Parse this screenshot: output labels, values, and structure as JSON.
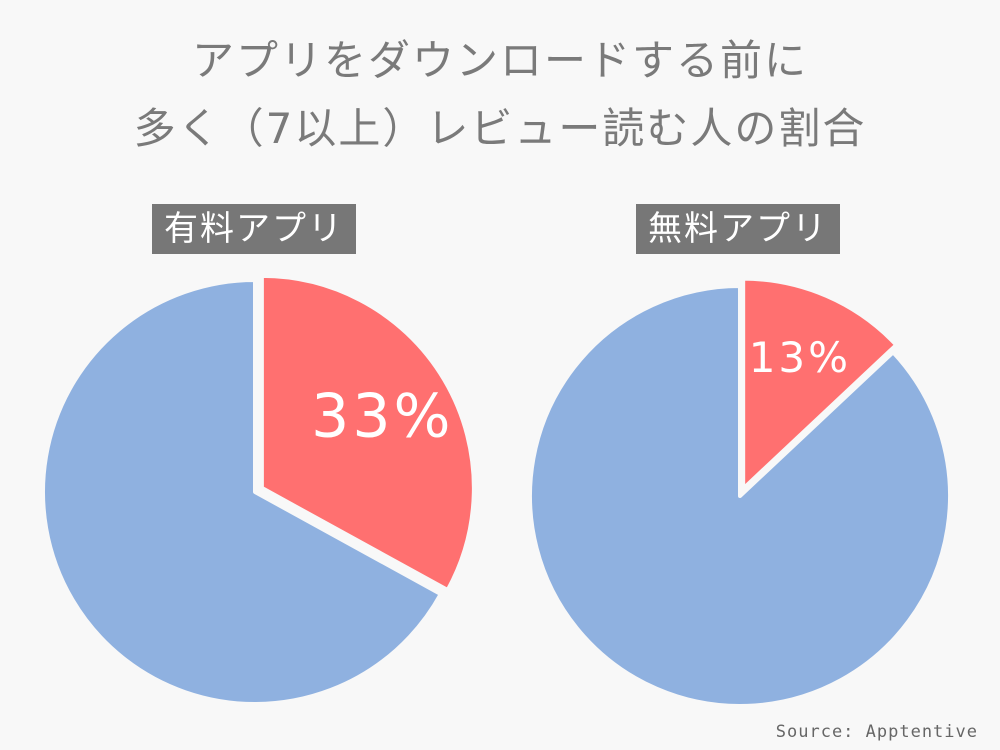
{
  "title": {
    "line1": "アプリをダウンロードする前に",
    "line2": "多く（7以上）レビュー読む人の割合"
  },
  "source": "Source: Apptentive",
  "colors": {
    "highlight": "#ff7070",
    "rest": "#8fb1e0",
    "label_bg": "#777777",
    "title_text": "#7a7a7a",
    "slice_text": "#ffffff"
  },
  "chart_data": [
    {
      "type": "pie",
      "title": "有料アプリ",
      "slices": [
        {
          "value": 33,
          "label": "33%",
          "color": "#ff7070",
          "exploded": true
        },
        {
          "value": 67,
          "label": "",
          "color": "#8fb1e0",
          "exploded": false
        }
      ],
      "start_angle": "12 o'clock, clockwise"
    },
    {
      "type": "pie",
      "title": "無料アプリ",
      "slices": [
        {
          "value": 13,
          "label": "13%",
          "color": "#ff7070",
          "exploded": true
        },
        {
          "value": 87,
          "label": "",
          "color": "#8fb1e0",
          "exploded": false
        }
      ],
      "start_angle": "12 o'clock, clockwise"
    }
  ]
}
